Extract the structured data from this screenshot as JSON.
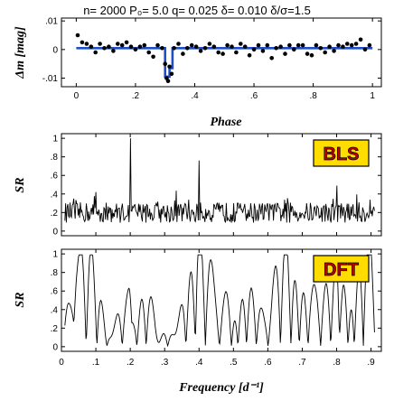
{
  "header": {
    "text": "n= 2000   P₀= 5.0   q= 0.025   δ= 0.010   δ/σ=1.5"
  },
  "chart_data": [
    {
      "type": "scatter",
      "xlabel": "Phase",
      "ylabel": "Δm  [mag]",
      "xlim": [
        -0.05,
        1.03
      ],
      "ylim": [
        -0.013,
        0.011
      ],
      "xticks": [
        0,
        0.2,
        0.4,
        0.6,
        0.8,
        1.0
      ],
      "xtick_labels": [
        "0",
        ".2",
        ".4",
        ".6",
        ".8",
        "1"
      ],
      "yticks": [
        0.01,
        0,
        -0.01
      ],
      "ytick_labels": [
        ".01",
        "0",
        "-.01"
      ],
      "points_x": [
        0.005,
        0.02,
        0.035,
        0.05,
        0.065,
        0.08,
        0.095,
        0.11,
        0.125,
        0.14,
        0.155,
        0.17,
        0.185,
        0.2,
        0.215,
        0.23,
        0.245,
        0.26,
        0.275,
        0.29,
        0.3,
        0.305,
        0.31,
        0.315,
        0.322,
        0.33,
        0.345,
        0.36,
        0.375,
        0.39,
        0.405,
        0.42,
        0.435,
        0.45,
        0.465,
        0.48,
        0.495,
        0.51,
        0.525,
        0.54,
        0.555,
        0.57,
        0.585,
        0.6,
        0.615,
        0.63,
        0.645,
        0.66,
        0.675,
        0.69,
        0.705,
        0.72,
        0.735,
        0.75,
        0.765,
        0.78,
        0.795,
        0.81,
        0.825,
        0.84,
        0.855,
        0.87,
        0.885,
        0.9,
        0.915,
        0.93,
        0.945,
        0.96,
        0.975,
        0.99
      ],
      "points_y": [
        0.005,
        0.0025,
        0.002,
        0.001,
        -0.001,
        0.002,
        0.0005,
        0.001,
        -0.0005,
        0.002,
        0.0015,
        0.0025,
        0.001,
        0.0,
        0.001,
        0.0015,
        -0.001,
        -0.0025,
        0.0015,
        0.0005,
        -0.005,
        -0.01,
        -0.011,
        -0.006,
        -0.0085,
        0.0005,
        0.002,
        -0.0015,
        0.0005,
        0.0015,
        0.001,
        -0.0005,
        0.0005,
        0.002,
        0.001,
        -0.001,
        -0.0015,
        0.0015,
        0.001,
        -0.001,
        0.002,
        0.001,
        -0.002,
        0.0,
        0.0015,
        -0.0005,
        0.0015,
        -0.003,
        0.0005,
        0.001,
        -0.0015,
        0.0015,
        0.0,
        0.0015,
        0.0015,
        -0.0015,
        -0.002,
        0.0015,
        0.0005,
        -0.001,
        0.001,
        -0.0005,
        0.0015,
        0.001,
        0.002,
        0.0015,
        0.002,
        0.0035,
        0.0,
        0.0015
      ],
      "model_x": [
        0,
        0.3,
        0.3,
        0.315,
        0.315,
        0.325,
        0.325,
        1
      ],
      "model_y": [
        0.0005,
        0.0005,
        -0.0095,
        -0.0095,
        -0.0065,
        -0.0065,
        0.0005,
        0.0005
      ],
      "colors": {
        "points": "#000000",
        "model": "#1f4fc8"
      }
    },
    {
      "type": "line",
      "ylabel": "SR",
      "badge": "BLS",
      "xlim": [
        0,
        0.93
      ],
      "ylim": [
        -0.05,
        1.05
      ],
      "yticks": [
        0,
        0.2,
        0.4,
        0.6,
        0.8,
        1.0
      ],
      "ytick_labels": [
        "0",
        ".2",
        ".4",
        ".6",
        ".8",
        "1"
      ],
      "peaks_x": [
        0.2,
        0.4,
        0.8,
        0.1,
        0.5,
        0.6
      ],
      "peaks_y": [
        1.0,
        0.76,
        0.49,
        0.42,
        0.3,
        0.3
      ],
      "baseline": 0.2,
      "colors": {
        "line": "#000000",
        "badge_fill": "#ffdd00",
        "badge_text": "#c00000"
      }
    },
    {
      "type": "line",
      "xlabel": "Frequency  [d⁻¹]",
      "ylabel": "SR",
      "badge": "DFT",
      "xlim": [
        0,
        0.93
      ],
      "ylim": [
        -0.05,
        1.05
      ],
      "xticks": [
        0,
        0.1,
        0.2,
        0.3,
        0.4,
        0.5,
        0.6,
        0.7,
        0.8,
        0.9
      ],
      "xtick_labels": [
        "0",
        ".1",
        ".2",
        ".3",
        ".4",
        ".5",
        ".6",
        ".7",
        ".8",
        ".9"
      ],
      "yticks": [
        0,
        0.2,
        0.4,
        0.6,
        0.8,
        1.0
      ],
      "ytick_labels": [
        "0",
        ".2",
        ".4",
        ".6",
        ".8",
        "1"
      ],
      "colors": {
        "line": "#000000",
        "badge_fill": "#ffdd00",
        "badge_text": "#c00000"
      }
    }
  ]
}
